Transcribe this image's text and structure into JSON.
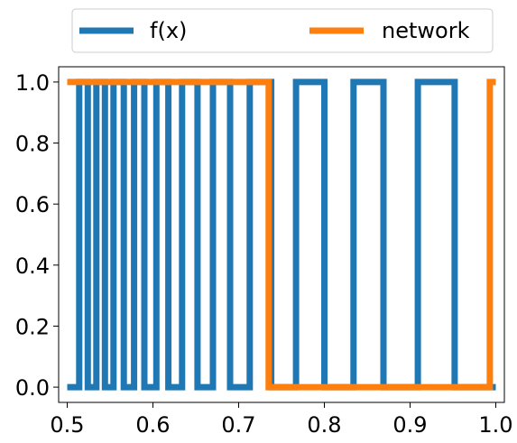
{
  "chart_data": {
    "type": "line",
    "step": true,
    "xlim": [
      0.49,
      1.01
    ],
    "ylim": [
      -0.05,
      1.05
    ],
    "x_ticks": [
      0.5,
      0.6,
      0.7,
      0.8,
      0.9,
      1.0
    ],
    "x_tick_labels": [
      "0.5",
      "0.6",
      "0.7",
      "0.8",
      "0.9",
      "1.0"
    ],
    "y_ticks": [
      0.0,
      0.2,
      0.4,
      0.6,
      0.8,
      1.0
    ],
    "y_tick_labels": [
      "0.0",
      "0.2",
      "0.4",
      "0.6",
      "0.8",
      "1.0"
    ],
    "legend": {
      "placement": "top-center-outside",
      "columns": 2
    },
    "grid": false,
    "series": [
      {
        "name": "f(x)",
        "color": "#1f77b4",
        "x": [
          0.5,
          0.514,
          0.514,
          0.524,
          0.524,
          0.534,
          0.534,
          0.544,
          0.544,
          0.554,
          0.554,
          0.566,
          0.566,
          0.578,
          0.578,
          0.59,
          0.59,
          0.604,
          0.604,
          0.618,
          0.618,
          0.634,
          0.634,
          0.652,
          0.652,
          0.67,
          0.67,
          0.69,
          0.69,
          0.713,
          0.713,
          0.738,
          0.738,
          0.767,
          0.767,
          0.8,
          0.8,
          0.834,
          0.834,
          0.869,
          0.869,
          0.909,
          0.909,
          0.952,
          0.952,
          1.0
        ],
        "y": [
          0,
          0,
          1,
          1,
          0,
          0,
          1,
          1,
          0,
          0,
          1,
          1,
          0,
          0,
          1,
          1,
          0,
          0,
          1,
          1,
          0,
          0,
          1,
          1,
          0,
          0,
          1,
          1,
          0,
          0,
          1,
          1,
          0,
          0,
          1,
          1,
          0,
          0,
          1,
          1,
          0,
          0,
          1,
          1,
          0,
          0
        ]
      },
      {
        "name": "network",
        "color": "#ff7f0e",
        "x": [
          0.5,
          0.735,
          0.735,
          0.993,
          0.993,
          1.0
        ],
        "y": [
          1,
          1,
          0,
          0,
          1,
          1
        ]
      }
    ]
  }
}
